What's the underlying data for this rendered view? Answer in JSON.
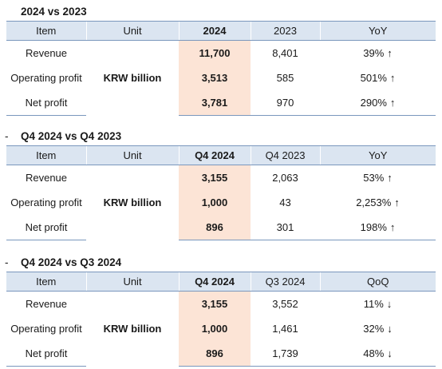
{
  "sections": [
    {
      "title": "2024 vs 2023",
      "dash": "",
      "headers": [
        "Item",
        "Unit",
        "2024",
        "2023",
        "YoY"
      ],
      "unit": "KRW billion",
      "rows": [
        {
          "item": "Revenue",
          "cur": "11,700",
          "prev": "8,401",
          "change": "39%",
          "arrow": "↑"
        },
        {
          "item": "Operating profit",
          "cur": "3,513",
          "prev": "585",
          "change": "501%",
          "arrow": "↑"
        },
        {
          "item": "Net profit",
          "cur": "3,781",
          "prev": "970",
          "change": "290%",
          "arrow": "↑"
        }
      ]
    },
    {
      "title": "Q4 2024 vs Q4 2023",
      "dash": "-",
      "headers": [
        "Item",
        "Unit",
        "Q4 2024",
        "Q4 2023",
        "YoY"
      ],
      "unit": "KRW billion",
      "rows": [
        {
          "item": "Revenue",
          "cur": "3,155",
          "prev": "2,063",
          "change": "53%",
          "arrow": "↑"
        },
        {
          "item": "Operating profit",
          "cur": "1,000",
          "prev": "43",
          "change": "2,253%",
          "arrow": "↑"
        },
        {
          "item": "Net profit",
          "cur": "896",
          "prev": "301",
          "change": "198%",
          "arrow": "↑"
        }
      ]
    },
    {
      "title": "Q4 2024 vs Q3 2024",
      "dash": "-",
      "headers": [
        "Item",
        "Unit",
        "Q4 2024",
        "Q3 2024",
        "QoQ"
      ],
      "unit": "KRW billion",
      "rows": [
        {
          "item": "Revenue",
          "cur": "3,155",
          "prev": "3,552",
          "change": "11%",
          "arrow": "↓"
        },
        {
          "item": "Operating profit",
          "cur": "1,000",
          "prev": "1,461",
          "change": "32%",
          "arrow": "↓"
        },
        {
          "item": "Net profit",
          "cur": "896",
          "prev": "1,739",
          "change": "48%",
          "arrow": "↓"
        }
      ]
    }
  ]
}
